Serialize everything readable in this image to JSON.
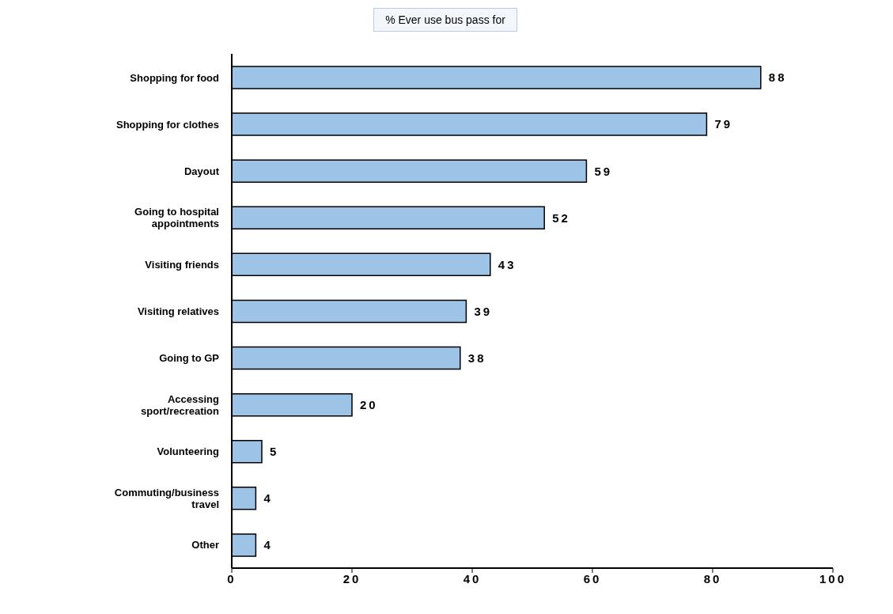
{
  "chart_data": {
    "type": "bar",
    "orientation": "horizontal",
    "title": "% Ever use bus pass for",
    "categories": [
      "Shopping for food",
      "Shopping for clothes",
      "Dayout",
      "Going to hospital appointments",
      "Visiting friends",
      "Visiting relatives",
      "Going to GP",
      "Accessing sport/recreation",
      "Volunteering",
      "Commuting/business travel",
      "Other"
    ],
    "values": [
      88,
      79,
      59,
      52,
      43,
      39,
      38,
      20,
      5,
      4,
      4
    ],
    "color": "#9dc3e6",
    "xlim": [
      0,
      100
    ],
    "xticks": [
      0,
      20,
      40,
      60,
      80,
      100
    ],
    "data_labels": true,
    "grid": false,
    "legend": false
  }
}
